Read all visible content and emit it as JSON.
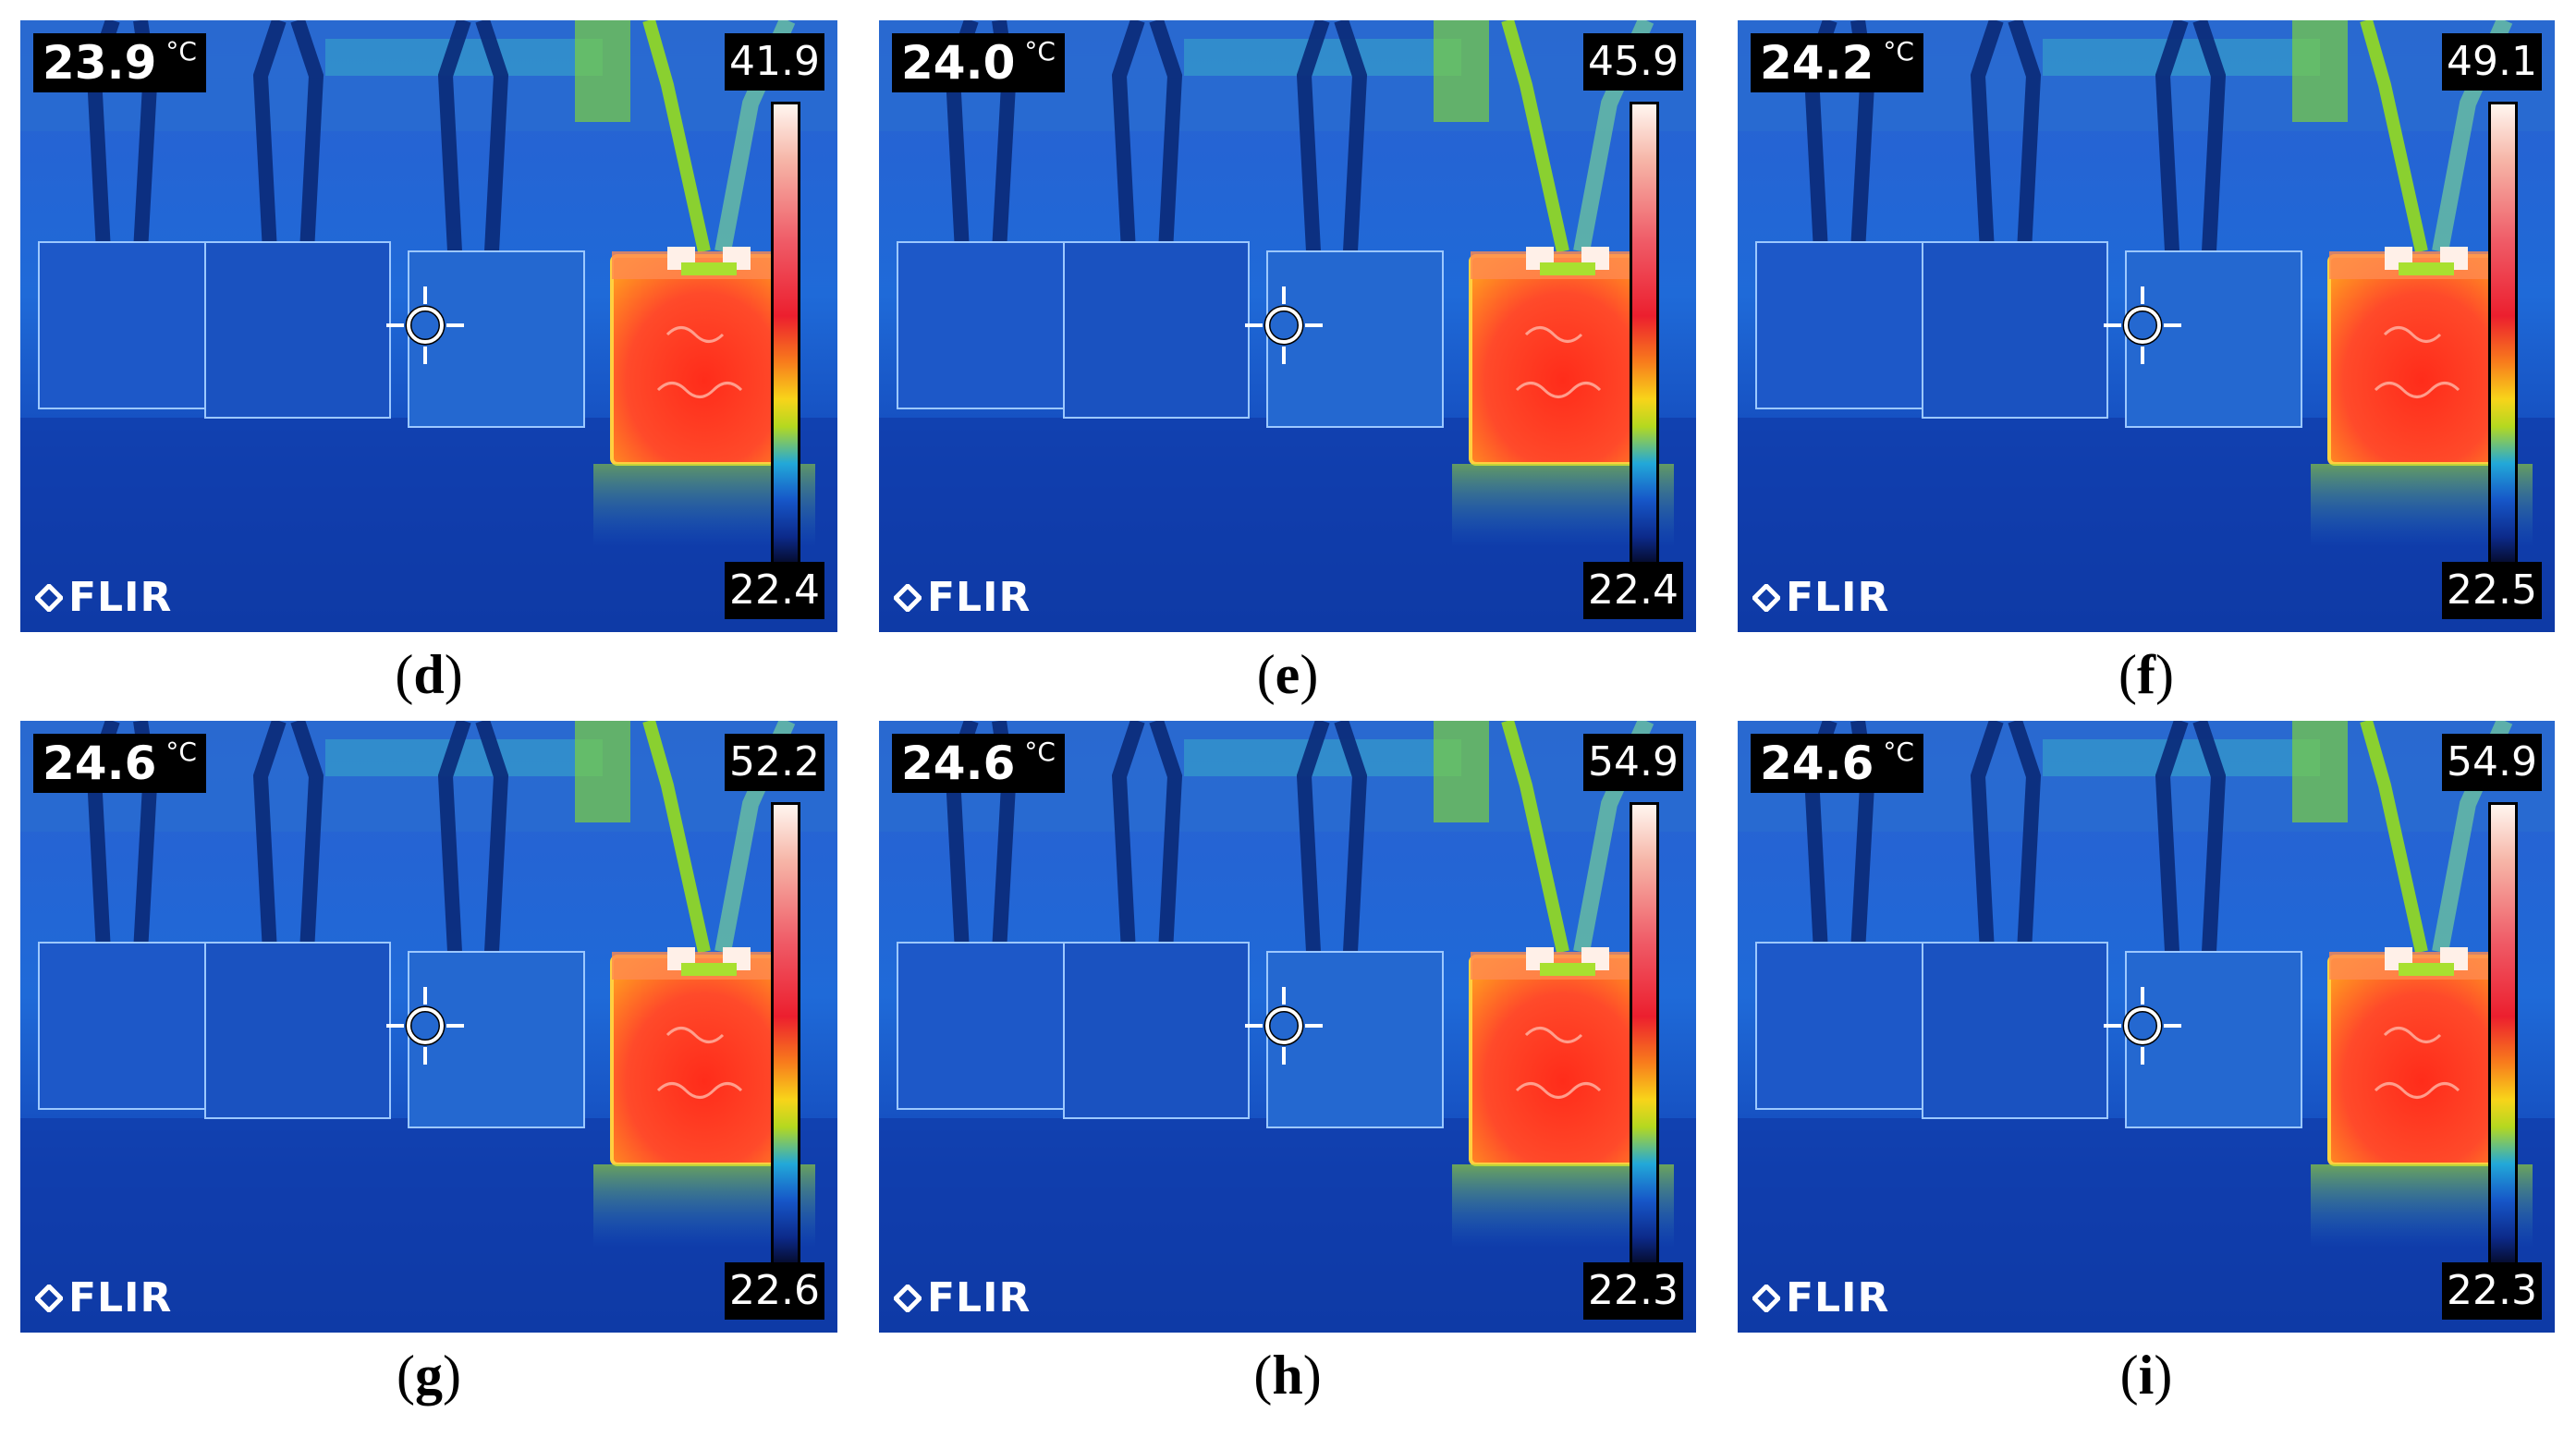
{
  "panels": [
    {
      "label": "d",
      "spot_temp": "23.9",
      "unit": "°C",
      "scale_max": "41.9",
      "scale_min": "22.4",
      "logo": "FLIR",
      "hot_level": 0.7
    },
    {
      "label": "e",
      "spot_temp": "24.0",
      "unit": "°C",
      "scale_max": "45.9",
      "scale_min": "22.4",
      "logo": "FLIR",
      "hot_level": 0.78
    },
    {
      "label": "f",
      "spot_temp": "24.2",
      "unit": "°C",
      "scale_max": "49.1",
      "scale_min": "22.5",
      "logo": "FLIR",
      "hot_level": 0.84
    },
    {
      "label": "g",
      "spot_temp": "24.6",
      "unit": "°C",
      "scale_max": "52.2",
      "scale_min": "22.6",
      "logo": "FLIR",
      "hot_level": 0.9
    },
    {
      "label": "h",
      "spot_temp": "24.6",
      "unit": "°C",
      "scale_max": "54.9",
      "scale_min": "22.3",
      "logo": "FLIR",
      "hot_level": 0.96
    },
    {
      "label": "i",
      "spot_temp": "24.6",
      "unit": "°C",
      "scale_max": "54.9",
      "scale_min": "22.3",
      "logo": "FLIR",
      "hot_level": 0.96
    }
  ],
  "colors": {
    "background_cold": "#1040b8",
    "hot_block": "#ff3a2a",
    "hot_block_edge": "#ffb020"
  }
}
